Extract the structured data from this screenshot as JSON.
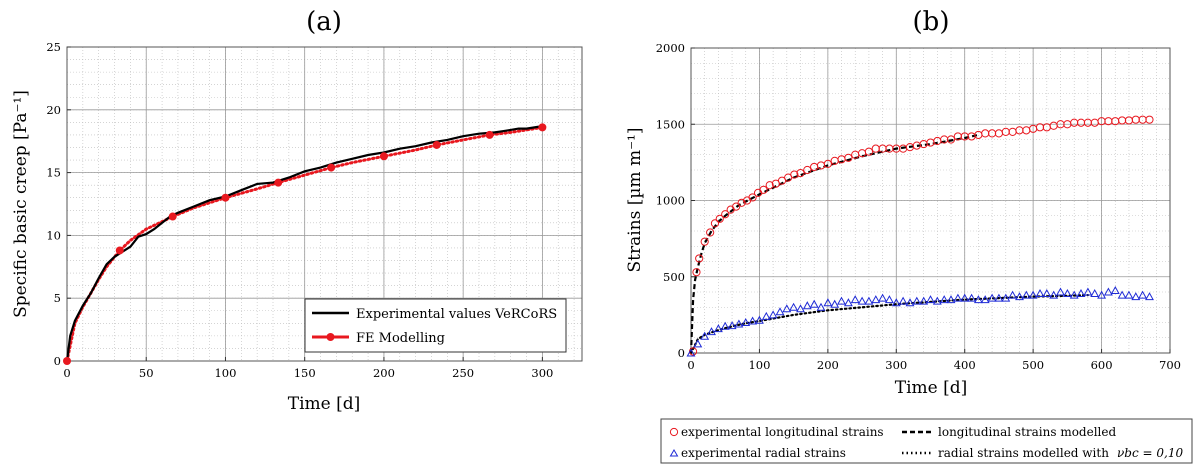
{
  "chart_data": [
    {
      "type": "line",
      "panel_label": "(a)",
      "xlabel": "Time [d]",
      "ylabel": "Specific basic creep [Pa⁻¹]",
      "xlim": [
        0,
        325
      ],
      "ylim": [
        0,
        25
      ],
      "xticks": [
        0,
        50,
        100,
        150,
        200,
        250,
        300
      ],
      "yticks": [
        0,
        5,
        10,
        15,
        20,
        25
      ],
      "grid": true,
      "legend_position": "bottom-right",
      "series": [
        {
          "name": "Experimental values VeRCoRS",
          "color": "#000000",
          "style": "solid",
          "x": [
            0,
            2,
            5,
            10,
            15,
            20,
            25,
            30,
            35,
            40,
            45,
            50,
            55,
            60,
            65,
            70,
            80,
            90,
            100,
            110,
            120,
            130,
            140,
            150,
            160,
            170,
            180,
            190,
            200,
            210,
            220,
            230,
            240,
            250,
            260,
            270,
            275,
            280,
            285,
            290,
            295,
            300
          ],
          "y": [
            0,
            2.0,
            3.2,
            4.4,
            5.4,
            6.6,
            7.7,
            8.3,
            8.7,
            9.1,
            9.9,
            10.1,
            10.5,
            11.0,
            11.5,
            11.8,
            12.3,
            12.8,
            13.1,
            13.6,
            14.1,
            14.2,
            14.6,
            15.1,
            15.4,
            15.8,
            16.1,
            16.4,
            16.6,
            16.9,
            17.1,
            17.4,
            17.6,
            17.9,
            18.1,
            18.2,
            18.3,
            18.4,
            18.5,
            18.5,
            18.6,
            18.7
          ]
        },
        {
          "name": "FE Modelling",
          "color": "#e8181f",
          "style": "dotted",
          "x": [
            0,
            5,
            10,
            15,
            20,
            25,
            33.3,
            40,
            50,
            66.7,
            80,
            100,
            120,
            133.3,
            150,
            166.7,
            180,
            200,
            220,
            233.3,
            250,
            266.7,
            280,
            300
          ],
          "y": [
            0,
            3.0,
            4.3,
            5.4,
            6.5,
            7.5,
            8.8,
            9.6,
            10.5,
            11.5,
            12.2,
            13.0,
            13.7,
            14.2,
            14.8,
            15.4,
            15.8,
            16.3,
            16.8,
            17.2,
            17.6,
            18.0,
            18.2,
            18.6
          ],
          "markers_x": [
            0,
            33.3,
            66.7,
            100,
            133.3,
            166.7,
            200,
            233.3,
            266.7,
            300
          ],
          "markers_y": [
            0,
            8.8,
            11.5,
            13.0,
            14.2,
            15.4,
            16.3,
            17.2,
            18.0,
            18.6
          ]
        }
      ]
    },
    {
      "type": "scatter",
      "panel_label": "(b)",
      "xlabel": "Time [d]",
      "ylabel": "Strains [µm m⁻¹]",
      "xlim": [
        0,
        700
      ],
      "ylim": [
        0,
        2000
      ],
      "xticks": [
        0,
        100,
        200,
        300,
        400,
        500,
        600,
        700
      ],
      "yticks": [
        0,
        500,
        1000,
        1500,
        2000
      ],
      "grid": true,
      "legend_position": "below",
      "series": [
        {
          "name": "experimental longitudinal strains",
          "marker": "circle",
          "color": "#e8181f",
          "x": [
            3,
            8,
            12,
            20,
            28,
            35,
            42,
            50,
            58,
            66,
            74,
            82,
            90,
            98,
            106,
            115,
            124,
            133,
            142,
            151,
            160,
            170,
            180,
            190,
            200,
            210,
            220,
            230,
            240,
            250,
            260,
            270,
            280,
            290,
            300,
            310,
            320,
            330,
            340,
            350,
            360,
            370,
            380,
            390,
            400,
            410,
            420,
            430,
            440,
            450,
            460,
            470,
            480,
            490,
            500,
            510,
            520,
            530,
            540,
            550,
            560,
            570,
            580,
            590,
            600,
            610,
            620,
            630,
            640,
            650,
            660,
            670
          ],
          "y": [
            10,
            530,
            620,
            730,
            790,
            850,
            880,
            910,
            940,
            960,
            985,
            1000,
            1020,
            1050,
            1070,
            1100,
            1110,
            1130,
            1150,
            1170,
            1180,
            1200,
            1220,
            1230,
            1240,
            1260,
            1270,
            1280,
            1300,
            1310,
            1320,
            1340,
            1340,
            1340,
            1340,
            1340,
            1350,
            1360,
            1370,
            1380,
            1390,
            1400,
            1400,
            1420,
            1420,
            1420,
            1430,
            1440,
            1440,
            1440,
            1450,
            1450,
            1460,
            1460,
            1470,
            1480,
            1480,
            1490,
            1500,
            1500,
            1510,
            1510,
            1510,
            1510,
            1520,
            1520,
            1520,
            1525,
            1525,
            1530,
            1530,
            1530
          ]
        },
        {
          "name": "experimental radial strains",
          "marker": "triangle",
          "color": "#1f2bd6",
          "x": [
            0,
            10,
            20,
            30,
            40,
            50,
            60,
            70,
            80,
            90,
            100,
            110,
            120,
            130,
            140,
            150,
            160,
            170,
            180,
            190,
            200,
            210,
            220,
            230,
            240,
            250,
            260,
            270,
            280,
            290,
            300,
            310,
            320,
            330,
            340,
            350,
            360,
            370,
            380,
            390,
            400,
            410,
            420,
            430,
            440,
            450,
            460,
            470,
            480,
            490,
            500,
            510,
            520,
            530,
            540,
            550,
            560,
            570,
            580,
            590,
            600,
            610,
            620,
            630,
            640,
            650,
            660,
            670
          ],
          "y": [
            0,
            60,
            110,
            140,
            160,
            175,
            180,
            190,
            200,
            210,
            215,
            240,
            250,
            270,
            290,
            300,
            290,
            310,
            320,
            300,
            330,
            320,
            340,
            330,
            350,
            340,
            340,
            350,
            360,
            350,
            330,
            340,
            330,
            340,
            340,
            350,
            340,
            350,
            350,
            360,
            360,
            360,
            350,
            350,
            360,
            360,
            360,
            380,
            370,
            380,
            380,
            390,
            390,
            380,
            400,
            390,
            380,
            390,
            400,
            390,
            380,
            400,
            410,
            380,
            380,
            370,
            380,
            370
          ]
        },
        {
          "name": "longitudinal strains modelled",
          "style": "dashed",
          "color": "#000000",
          "x": [
            0,
            3,
            6,
            10,
            15,
            20,
            30,
            40,
            50,
            70,
            100,
            150,
            200,
            250,
            300,
            350,
            400,
            420
          ],
          "y": [
            0,
            350,
            480,
            560,
            650,
            720,
            800,
            860,
            900,
            970,
            1040,
            1150,
            1230,
            1290,
            1340,
            1370,
            1410,
            1430
          ]
        },
        {
          "name": "radial strains modelled with",
          "style": "dotted",
          "color": "#000000",
          "x": [
            0,
            10,
            20,
            40,
            60,
            80,
            100,
            150,
            200,
            250,
            300,
            350,
            400,
            450,
            500,
            550,
            580
          ],
          "y": [
            0,
            90,
            120,
            150,
            175,
            195,
            210,
            250,
            280,
            300,
            320,
            335,
            350,
            360,
            370,
            375,
            380
          ]
        }
      ],
      "legend_formula": "νbc = 0,10"
    }
  ]
}
